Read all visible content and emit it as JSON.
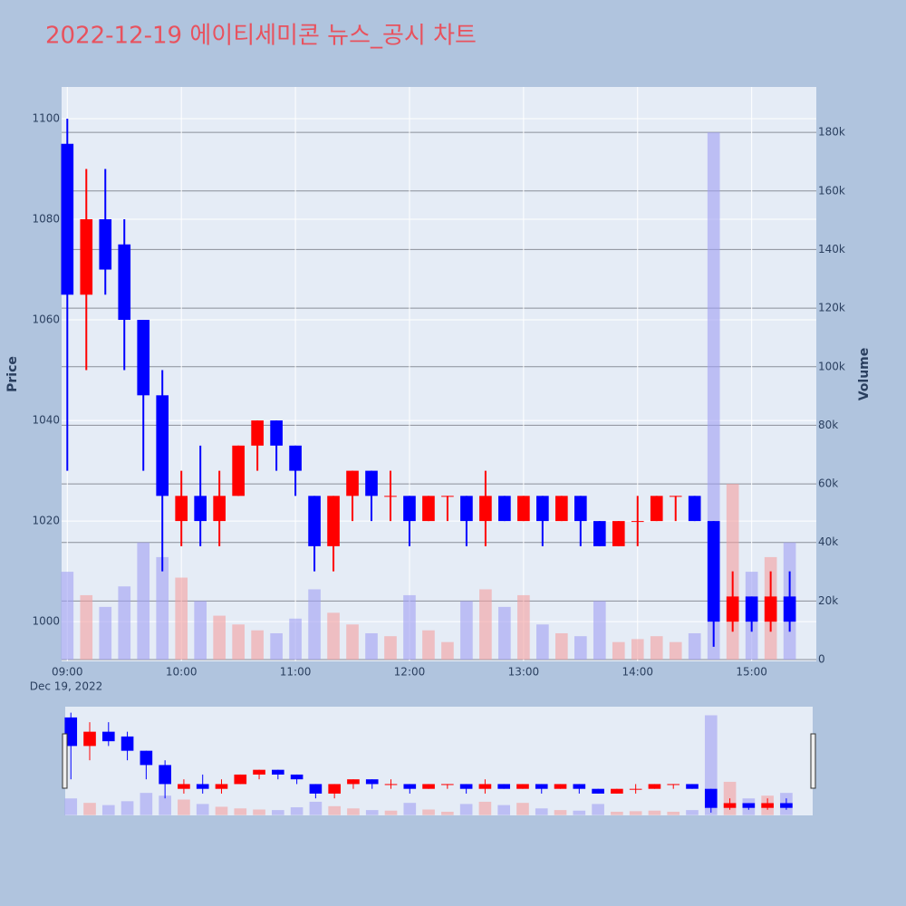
{
  "chart_data": {
    "type": "candlestick",
    "title": "2022-12-19 에이티세미콘 뉴스_공시 차트",
    "y_label": "Price",
    "y2_label": "Volume",
    "date_label": "Dec 19, 2022",
    "x": [
      "2022-12-19 09:00",
      "2022-12-19 09:10",
      "2022-12-19 09:20",
      "2022-12-19 09:30",
      "2022-12-19 09:40",
      "2022-12-19 09:50",
      "2022-12-19 10:00",
      "2022-12-19 10:10",
      "2022-12-19 10:20",
      "2022-12-19 10:30",
      "2022-12-19 10:40",
      "2022-12-19 10:50",
      "2022-12-19 11:00",
      "2022-12-19 11:10",
      "2022-12-19 11:20",
      "2022-12-19 11:30",
      "2022-12-19 11:40",
      "2022-12-19 11:50",
      "2022-12-19 12:00",
      "2022-12-19 12:10",
      "2022-12-19 12:20",
      "2022-12-19 12:30",
      "2022-12-19 12:40",
      "2022-12-19 12:50",
      "2022-12-19 13:00",
      "2022-12-19 13:10",
      "2022-12-19 13:20",
      "2022-12-19 13:30",
      "2022-12-19 13:40",
      "2022-12-19 13:50",
      "2022-12-19 14:00",
      "2022-12-19 14:10",
      "2022-12-19 14:20",
      "2022-12-19 14:30",
      "2022-12-19 14:40",
      "2022-12-19 14:50",
      "2022-12-19 15:00",
      "2022-12-19 15:10",
      "2022-12-19 15:20"
    ],
    "open": [
      1095,
      1065,
      1080,
      1075,
      1060,
      1045,
      1020,
      1025,
      1020,
      1025,
      1035,
      1040,
      1035,
      1025,
      1015,
      1025,
      1030,
      1025,
      1025,
      1020,
      1025,
      1025,
      1020,
      1025,
      1020,
      1025,
      1020,
      1025,
      1020,
      1015,
      1020,
      1020,
      1025,
      1025,
      1020,
      1000,
      1005,
      1000,
      1005
    ],
    "high": [
      1100,
      1090,
      1090,
      1080,
      1060,
      1050,
      1030,
      1035,
      1030,
      1035,
      1040,
      1040,
      1035,
      1025,
      1025,
      1030,
      1030,
      1030,
      1025,
      1025,
      1025,
      1025,
      1030,
      1025,
      1025,
      1025,
      1025,
      1025,
      1020,
      1020,
      1025,
      1025,
      1025,
      1025,
      1020,
      1010,
      1005,
      1010,
      1010
    ],
    "low": [
      1030,
      1050,
      1065,
      1050,
      1030,
      1010,
      1015,
      1015,
      1015,
      1025,
      1030,
      1030,
      1025,
      1010,
      1010,
      1020,
      1020,
      1020,
      1015,
      1020,
      1020,
      1015,
      1015,
      1020,
      1020,
      1015,
      1020,
      1015,
      1015,
      1015,
      1015,
      1020,
      1020,
      1020,
      995,
      998,
      998,
      998,
      998
    ],
    "close": [
      1065,
      1080,
      1070,
      1060,
      1045,
      1025,
      1025,
      1020,
      1025,
      1035,
      1040,
      1035,
      1030,
      1015,
      1025,
      1030,
      1025,
      1025,
      1020,
      1025,
      1025,
      1020,
      1025,
      1020,
      1025,
      1020,
      1025,
      1020,
      1015,
      1020,
      1020,
      1025,
      1025,
      1020,
      1000,
      1005,
      1000,
      1005,
      1000
    ],
    "volume": [
      30000,
      22000,
      18000,
      25000,
      40000,
      35000,
      28000,
      20000,
      15000,
      12000,
      10000,
      9000,
      14000,
      24000,
      16000,
      12000,
      9000,
      8000,
      22000,
      10000,
      6000,
      20000,
      24000,
      18000,
      22000,
      12000,
      9000,
      8000,
      20000,
      6000,
      7000,
      8000,
      6000,
      9000,
      180000,
      60000,
      30000,
      35000,
      40000
    ],
    "up_color": "#ff0000",
    "down_color": "#0000ff",
    "up_volume_color": "#f4a0a0",
    "down_volume_color": "#a0a0f4",
    "xlim": [
      "2022-12-19 08:57",
      "2022-12-19 15:34"
    ],
    "xticks": [
      {
        "value": "2022-12-19 09:00",
        "label": "09:00"
      },
      {
        "value": "2022-12-19 10:00",
        "label": "10:00"
      },
      {
        "value": "2022-12-19 11:00",
        "label": "11:00"
      },
      {
        "value": "2022-12-19 12:00",
        "label": "12:00"
      },
      {
        "value": "2022-12-19 13:00",
        "label": "13:00"
      },
      {
        "value": "2022-12-19 14:00",
        "label": "14:00"
      },
      {
        "value": "2022-12-19 15:00",
        "label": "15:00"
      }
    ],
    "ylim": [
      992.1,
      1106.3
    ],
    "yticks": [
      1000,
      1020,
      1040,
      1060,
      1080,
      1100
    ],
    "y2lim": [
      -600,
      195500
    ],
    "y2ticks": [
      0,
      {
        "value": 20000,
        "label": "20k"
      },
      {
        "value": 40000,
        "label": "40k"
      },
      {
        "value": 60000,
        "label": "60k"
      },
      {
        "value": 80000,
        "label": "80k"
      },
      {
        "value": 100000,
        "label": "100k"
      },
      {
        "value": 120000,
        "label": "120k"
      },
      {
        "value": 140000,
        "label": "140k"
      },
      {
        "value": 160000,
        "label": "160k"
      },
      {
        "value": 180000,
        "label": "180k"
      }
    ],
    "grid": true,
    "range_slider": true
  }
}
